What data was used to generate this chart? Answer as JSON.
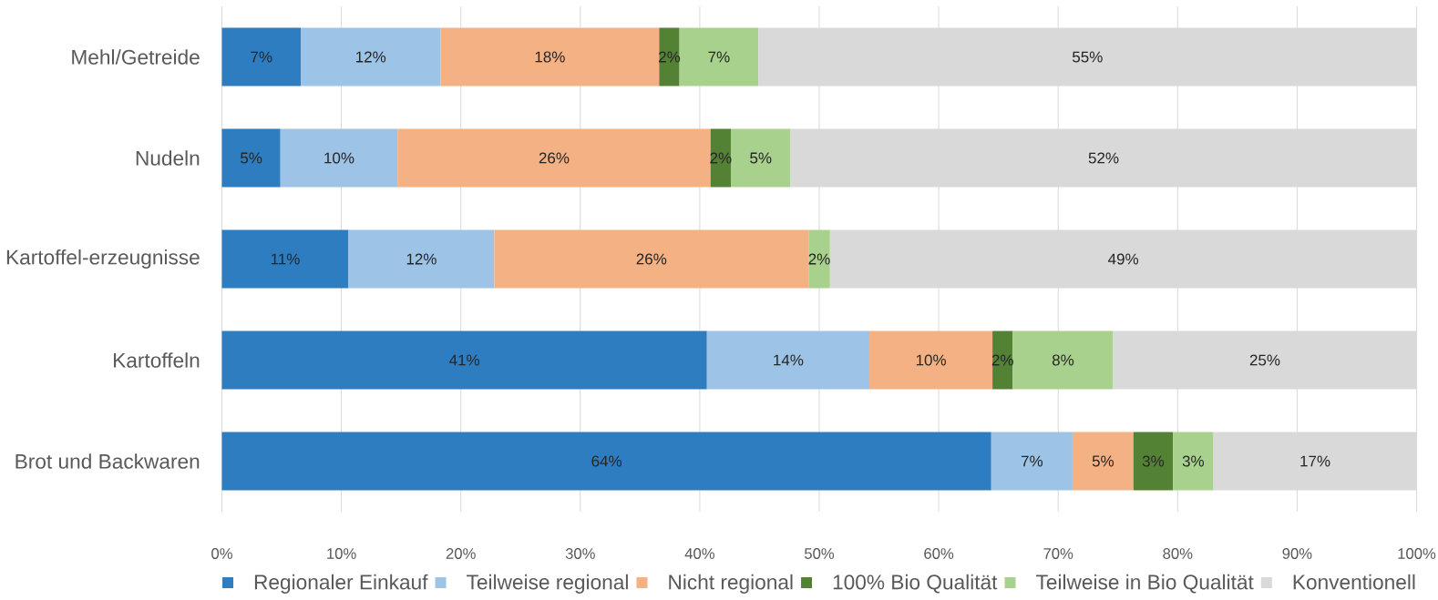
{
  "chart_data": {
    "type": "bar",
    "orientation": "horizontal",
    "stacked": true,
    "categories": [
      "Mehl/Getreide",
      "Nudeln",
      "Kartoffel-erzeugnisse",
      "Kartoffeln",
      "Brot und Backwaren"
    ],
    "series": [
      {
        "name": "Regionaler Einkauf",
        "color": "#2e7dc1",
        "values": [
          6.6,
          4.9,
          10.6,
          40.6,
          64.4
        ],
        "value_labels": [
          "7%",
          "5%",
          "11%",
          "41%",
          "64%"
        ]
      },
      {
        "name": "Teilweise regional",
        "color": "#9dc3e6",
        "values": [
          11.7,
          9.8,
          12.2,
          13.6,
          6.8
        ],
        "value_labels": [
          "12%",
          "10%",
          "12%",
          "14%",
          "7%"
        ]
      },
      {
        "name": "Nicht regional",
        "color": "#f4b183",
        "values": [
          18.3,
          26.2,
          26.3,
          10.3,
          5.1
        ],
        "value_labels": [
          "18%",
          "26%",
          "26%",
          "10%",
          "5%"
        ]
      },
      {
        "name": "100% Bio Qualität",
        "color": "#548235",
        "values": [
          1.7,
          1.7,
          0,
          1.7,
          3.3
        ],
        "value_labels": [
          "2%",
          "2%",
          null,
          "2%",
          "3%"
        ]
      },
      {
        "name": "Teilweise in Bio Qualität",
        "color": "#a9d18e",
        "values": [
          6.6,
          5.0,
          1.8,
          8.4,
          3.4
        ],
        "value_labels": [
          "7%",
          "5%",
          "2%",
          "8%",
          "3%"
        ]
      },
      {
        "name": "Konventionell",
        "color": "#d9d9d9",
        "values": [
          55.1,
          52.4,
          49.1,
          25.4,
          17.0
        ],
        "value_labels": [
          "55%",
          "52%",
          "49%",
          "25%",
          "17%"
        ]
      }
    ],
    "xlim": [
      0,
      100
    ],
    "xticks": [
      {
        "value": 0,
        "label": "0%"
      },
      {
        "value": 10,
        "label": "10%"
      },
      {
        "value": 20,
        "label": "20%"
      },
      {
        "value": 30,
        "label": "30%"
      },
      {
        "value": 40,
        "label": "40%"
      },
      {
        "value": 50,
        "label": "50%"
      },
      {
        "value": 60,
        "label": "60%"
      },
      {
        "value": 70,
        "label": "70%"
      },
      {
        "value": 80,
        "label": "80%"
      },
      {
        "value": 90,
        "label": "90%"
      },
      {
        "value": 100,
        "label": "100%"
      }
    ],
    "grid": "x",
    "legend": "bottom"
  }
}
